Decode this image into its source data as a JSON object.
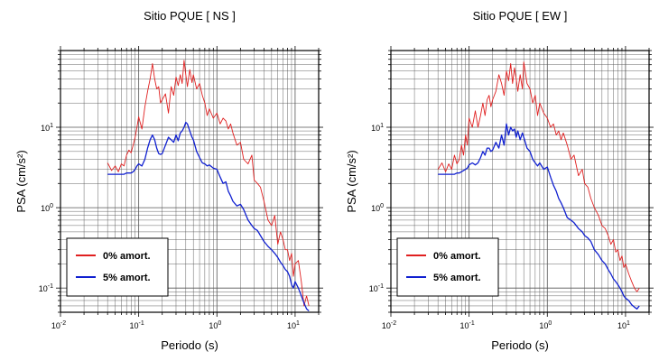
{
  "chart_data": [
    {
      "type": "line",
      "title": "Sitio PQUE [ NS ]",
      "xlabel": "Periodo (s)",
      "ylabel": "PSA (cm/s²)",
      "xscale": "log",
      "yscale": "log",
      "xlim": [
        0.01,
        20
      ],
      "ylim": [
        0.05,
        90
      ],
      "x_ticks": [
        {
          "base": "10",
          "exp": "-2"
        },
        {
          "base": "10",
          "exp": "-1"
        },
        {
          "base": "10",
          "exp": "0"
        },
        {
          "base": "10",
          "exp": "1"
        }
      ],
      "y_ticks": [
        {
          "base": "10",
          "exp": "-1"
        },
        {
          "base": "10",
          "exp": "0"
        },
        {
          "base": "10",
          "exp": "1"
        }
      ],
      "grid": true,
      "legend_position": "bottom-left",
      "series": [
        {
          "name": "0% amort.",
          "color": "#e02020",
          "x": [
            0.04,
            0.045,
            0.05,
            0.055,
            0.06,
            0.065,
            0.07,
            0.075,
            0.08,
            0.085,
            0.09,
            0.095,
            0.1,
            0.11,
            0.12,
            0.13,
            0.14,
            0.15,
            0.16,
            0.17,
            0.18,
            0.19,
            0.2,
            0.22,
            0.24,
            0.26,
            0.28,
            0.3,
            0.32,
            0.34,
            0.36,
            0.38,
            0.4,
            0.42,
            0.45,
            0.48,
            0.5,
            0.55,
            0.6,
            0.65,
            0.7,
            0.75,
            0.8,
            0.9,
            1.0,
            1.1,
            1.2,
            1.3,
            1.4,
            1.5,
            1.6,
            1.8,
            2.0,
            2.2,
            2.5,
            2.8,
            3.0,
            3.3,
            3.6,
            4.0,
            4.5,
            5.0,
            5.5,
            6.0,
            6.5,
            7.0,
            7.5,
            8.0,
            8.5,
            9.0,
            9.5,
            10.0,
            11.0,
            12.0,
            13.0,
            14.0,
            15.0
          ],
          "y": [
            3.6,
            2.9,
            3.3,
            2.8,
            3.5,
            3.3,
            4.5,
            5.2,
            4.8,
            6.0,
            7.5,
            10.0,
            13.5,
            9.5,
            18.0,
            28.0,
            40.0,
            62.0,
            40.0,
            30.0,
            32.0,
            20.0,
            22.0,
            26.0,
            15.0,
            32.0,
            25.0,
            42.0,
            33.0,
            45.0,
            35.0,
            68.0,
            45.0,
            32.0,
            52.0,
            36.0,
            45.0,
            30.0,
            35.0,
            25.0,
            20.0,
            14.0,
            17.0,
            13.0,
            15.0,
            11.0,
            13.0,
            12.0,
            9.5,
            11.0,
            8.5,
            6.0,
            6.5,
            4.0,
            3.5,
            4.5,
            2.2,
            2.0,
            1.8,
            1.2,
            0.7,
            0.6,
            0.8,
            0.35,
            0.5,
            0.4,
            0.3,
            0.3,
            0.22,
            0.27,
            0.14,
            0.2,
            0.22,
            0.12,
            0.06,
            0.08,
            0.06
          ]
        },
        {
          "name": "5% amort.",
          "color": "#1020d0",
          "x": [
            0.04,
            0.045,
            0.05,
            0.055,
            0.06,
            0.065,
            0.07,
            0.075,
            0.08,
            0.085,
            0.09,
            0.095,
            0.1,
            0.11,
            0.12,
            0.13,
            0.14,
            0.15,
            0.16,
            0.17,
            0.18,
            0.19,
            0.2,
            0.22,
            0.24,
            0.26,
            0.28,
            0.3,
            0.32,
            0.34,
            0.36,
            0.38,
            0.4,
            0.42,
            0.45,
            0.48,
            0.5,
            0.55,
            0.6,
            0.65,
            0.7,
            0.75,
            0.8,
            0.9,
            1.0,
            1.1,
            1.2,
            1.3,
            1.4,
            1.5,
            1.6,
            1.8,
            2.0,
            2.2,
            2.5,
            2.8,
            3.0,
            3.3,
            3.6,
            4.0,
            4.5,
            5.0,
            5.5,
            6.0,
            6.5,
            7.0,
            7.5,
            8.0,
            8.5,
            9.0,
            9.5,
            10.0,
            11.0,
            12.0,
            13.0,
            14.0,
            15.0
          ],
          "y": [
            2.6,
            2.6,
            2.6,
            2.6,
            2.6,
            2.6,
            2.7,
            2.7,
            2.7,
            2.8,
            3.0,
            3.3,
            3.5,
            3.3,
            4.0,
            5.5,
            7.0,
            8.0,
            7.0,
            5.5,
            4.7,
            4.6,
            4.7,
            6.0,
            7.5,
            7.0,
            6.5,
            8.0,
            6.8,
            8.5,
            9.0,
            10.0,
            11.5,
            11.0,
            9.0,
            7.5,
            7.0,
            5.0,
            4.2,
            3.6,
            3.5,
            3.3,
            3.4,
            3.1,
            3.0,
            2.4,
            2.0,
            2.1,
            1.6,
            1.4,
            1.2,
            1.05,
            1.1,
            0.95,
            0.7,
            0.6,
            0.55,
            0.52,
            0.45,
            0.38,
            0.33,
            0.3,
            0.27,
            0.24,
            0.21,
            0.19,
            0.17,
            0.16,
            0.14,
            0.11,
            0.1,
            0.12,
            0.1,
            0.08,
            0.065,
            0.055,
            0.052
          ]
        }
      ]
    },
    {
      "type": "line",
      "title": "Sitio PQUE [ EW ]",
      "xlabel": "Periodo (s)",
      "ylabel": "PSA (cm/s²)",
      "xscale": "log",
      "yscale": "log",
      "xlim": [
        0.01,
        20
      ],
      "ylim": [
        0.05,
        90
      ],
      "x_ticks": [
        {
          "base": "10",
          "exp": "-2"
        },
        {
          "base": "10",
          "exp": "-1"
        },
        {
          "base": "10",
          "exp": "0"
        },
        {
          "base": "10",
          "exp": "1"
        }
      ],
      "y_ticks": [
        {
          "base": "10",
          "exp": "-1"
        },
        {
          "base": "10",
          "exp": "0"
        },
        {
          "base": "10",
          "exp": "1"
        }
      ],
      "grid": true,
      "legend_position": "bottom-left",
      "series": [
        {
          "name": "0% amort.",
          "color": "#e02020",
          "x": [
            0.04,
            0.045,
            0.05,
            0.055,
            0.06,
            0.065,
            0.07,
            0.075,
            0.08,
            0.085,
            0.09,
            0.095,
            0.1,
            0.11,
            0.12,
            0.13,
            0.14,
            0.15,
            0.16,
            0.17,
            0.18,
            0.19,
            0.2,
            0.22,
            0.24,
            0.26,
            0.28,
            0.3,
            0.32,
            0.34,
            0.36,
            0.38,
            0.4,
            0.42,
            0.45,
            0.48,
            0.5,
            0.55,
            0.6,
            0.65,
            0.7,
            0.75,
            0.8,
            0.9,
            1.0,
            1.1,
            1.2,
            1.3,
            1.4,
            1.5,
            1.6,
            1.8,
            2.0,
            2.2,
            2.5,
            2.8,
            3.0,
            3.3,
            3.6,
            4.0,
            4.5,
            5.0,
            5.5,
            6.0,
            6.5,
            7.0,
            7.5,
            8.0,
            8.5,
            9.0,
            9.5,
            10.0,
            11.0,
            12.0,
            13.0,
            14.0,
            15.0
          ],
          "y": [
            3.0,
            3.6,
            2.8,
            3.5,
            3.0,
            4.5,
            3.5,
            4.0,
            6.0,
            4.5,
            8.0,
            6.0,
            13.0,
            10.0,
            16.0,
            10.0,
            14.0,
            20.0,
            14.0,
            22.0,
            25.0,
            18.0,
            22.0,
            28.0,
            45.0,
            35.0,
            25.0,
            50.0,
            38.0,
            62.0,
            35.0,
            55.0,
            40.0,
            28.0,
            45.0,
            30.0,
            65.0,
            35.0,
            30.0,
            20.0,
            25.0,
            14.0,
            20.0,
            15.0,
            13.0,
            10.0,
            11.0,
            8.0,
            9.0,
            7.0,
            8.5,
            6.0,
            4.0,
            4.5,
            2.5,
            3.0,
            2.0,
            1.8,
            1.3,
            1.0,
            0.8,
            0.6,
            0.55,
            0.45,
            0.35,
            0.4,
            0.28,
            0.3,
            0.22,
            0.25,
            0.18,
            0.2,
            0.15,
            0.12,
            0.1,
            0.09,
            0.1
          ]
        },
        {
          "name": "5% amort.",
          "color": "#1020d0",
          "x": [
            0.04,
            0.045,
            0.05,
            0.055,
            0.06,
            0.065,
            0.07,
            0.075,
            0.08,
            0.085,
            0.09,
            0.095,
            0.1,
            0.11,
            0.12,
            0.13,
            0.14,
            0.15,
            0.16,
            0.17,
            0.18,
            0.19,
            0.2,
            0.22,
            0.24,
            0.26,
            0.28,
            0.3,
            0.32,
            0.34,
            0.36,
            0.38,
            0.4,
            0.42,
            0.45,
            0.48,
            0.5,
            0.55,
            0.6,
            0.65,
            0.7,
            0.75,
            0.8,
            0.9,
            1.0,
            1.1,
            1.2,
            1.3,
            1.4,
            1.5,
            1.6,
            1.8,
            2.0,
            2.2,
            2.5,
            2.8,
            3.0,
            3.3,
            3.6,
            4.0,
            4.5,
            5.0,
            5.5,
            6.0,
            6.5,
            7.0,
            7.5,
            8.0,
            8.5,
            9.0,
            9.5,
            10.0,
            11.0,
            12.0,
            13.0,
            14.0,
            15.0
          ],
          "y": [
            2.6,
            2.6,
            2.6,
            2.6,
            2.6,
            2.6,
            2.7,
            2.7,
            2.8,
            2.9,
            3.0,
            3.1,
            3.4,
            3.6,
            3.4,
            3.6,
            4.2,
            5.0,
            4.5,
            5.5,
            5.5,
            5.0,
            5.2,
            6.5,
            5.5,
            8.0,
            6.0,
            11.0,
            8.0,
            10.0,
            9.0,
            9.5,
            7.5,
            9.0,
            7.0,
            8.5,
            7.5,
            5.5,
            5.0,
            4.0,
            3.6,
            3.3,
            3.6,
            3.0,
            3.2,
            2.4,
            1.9,
            1.6,
            1.3,
            1.15,
            1.0,
            0.75,
            0.7,
            0.65,
            0.55,
            0.5,
            0.45,
            0.42,
            0.38,
            0.3,
            0.26,
            0.22,
            0.2,
            0.17,
            0.15,
            0.13,
            0.12,
            0.11,
            0.1,
            0.09,
            0.08,
            0.075,
            0.07,
            0.062,
            0.058,
            0.055,
            0.06
          ]
        }
      ]
    }
  ]
}
